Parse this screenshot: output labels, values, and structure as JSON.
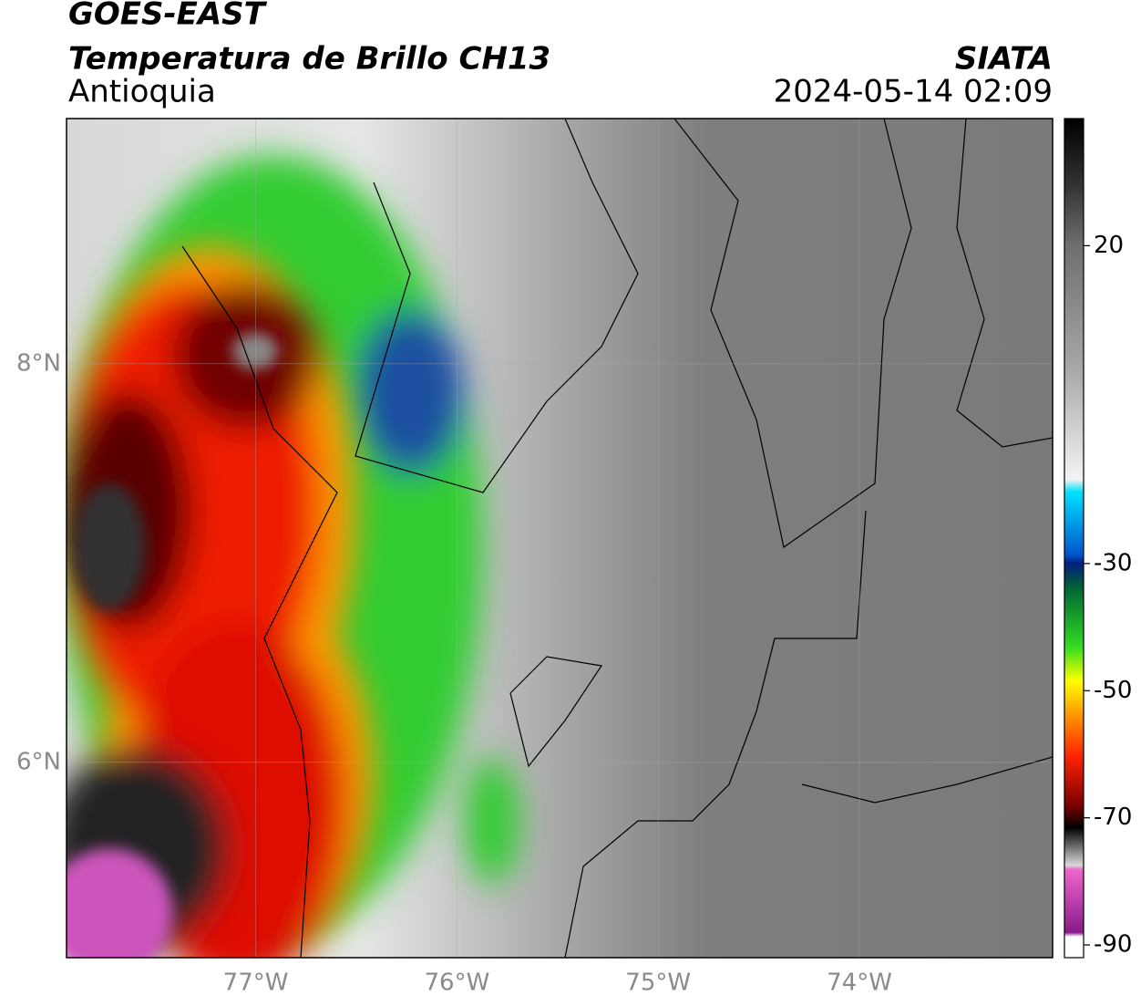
{
  "header": {
    "title": "GOES-EAST",
    "subtitle": "Temperatura de Brillo CH13",
    "region": "Antioquia",
    "source": "SIATA",
    "timestamp": "2024-05-14 02:09"
  },
  "map": {
    "xlim": [
      -77.94,
      -73.04
    ],
    "ylim": [
      5.02,
      9.23
    ],
    "xticks": [
      {
        "value": -77,
        "label": "77°W"
      },
      {
        "value": -76,
        "label": "76°W"
      },
      {
        "value": -75,
        "label": "75°W"
      },
      {
        "value": -74,
        "label": "74°W"
      }
    ],
    "yticks": [
      {
        "value": 8,
        "label": "8°N"
      },
      {
        "value": 6,
        "label": "6°N"
      }
    ]
  },
  "colorbar": {
    "lim": [
      -92,
      40
    ],
    "ticks": [
      20,
      -30,
      -50,
      -70,
      -90
    ]
  }
}
